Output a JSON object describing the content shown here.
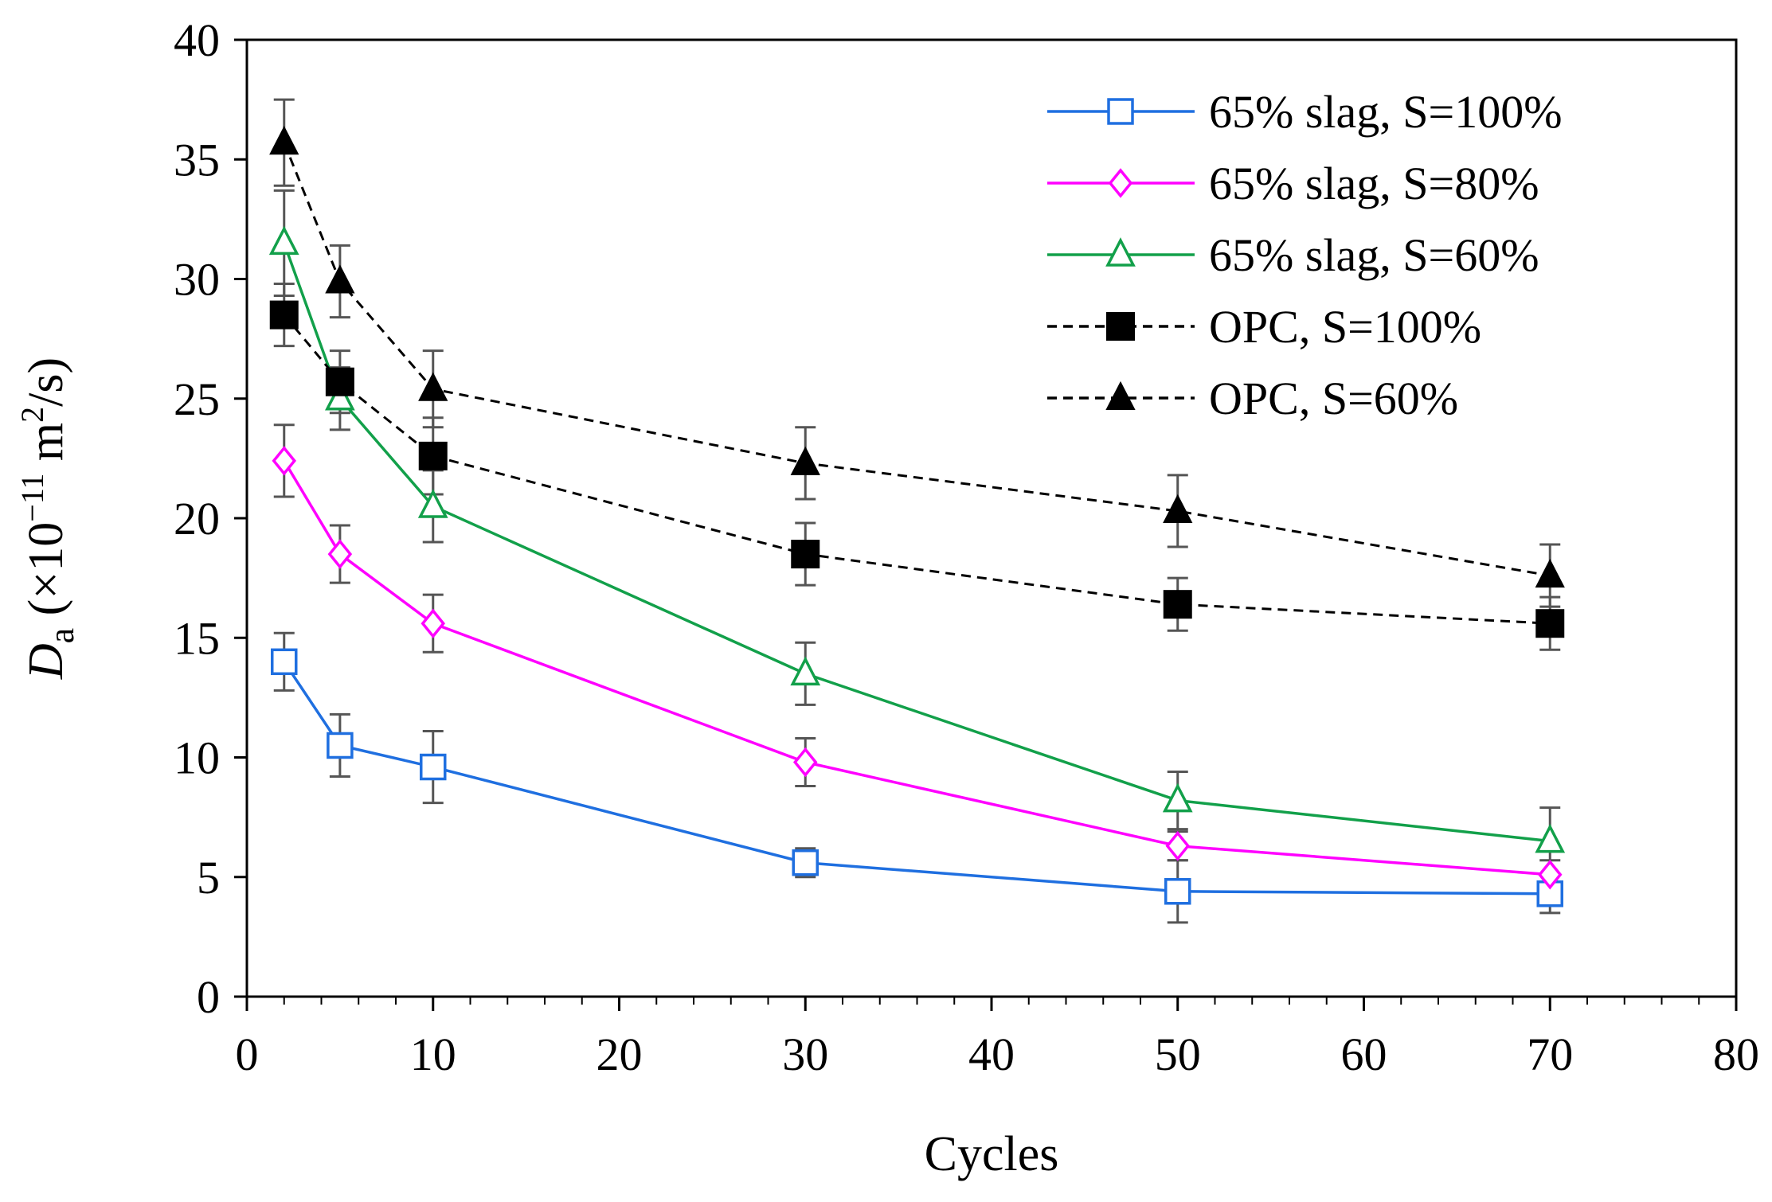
{
  "chart_data": {
    "type": "line",
    "title": "",
    "xlabel": "Cycles",
    "ylabel": {
      "symbol": "D",
      "subscript": "a",
      "open": " (×10",
      "exponent": "−11",
      "unit_base": " m",
      "unit_exponent": "2",
      "unit_rest": "/s)"
    },
    "xlim": [
      0,
      80
    ],
    "ylim": [
      0,
      40
    ],
    "xticks": [
      0,
      10,
      20,
      30,
      40,
      50,
      60,
      70,
      80
    ],
    "yticks": [
      0,
      5,
      10,
      15,
      20,
      25,
      30,
      35,
      40
    ],
    "x_minor_step": 2,
    "grid": false,
    "legend_position": "top-right",
    "x": [
      2,
      5,
      10,
      30,
      50,
      70
    ],
    "series": [
      {
        "name": "65% slag, S=100%",
        "color": "#1f6fe0",
        "dashed": false,
        "marker": "square-open",
        "values": [
          14.0,
          10.5,
          9.6,
          5.6,
          4.4,
          4.3
        ],
        "errors": [
          1.2,
          1.3,
          1.5,
          0.6,
          1.3,
          0.8
        ]
      },
      {
        "name": "65% slag, S=80%",
        "color": "#ff00ff",
        "dashed": false,
        "marker": "diamond-open",
        "values": [
          22.4,
          18.5,
          15.6,
          9.8,
          6.3,
          5.1
        ],
        "errors": [
          1.5,
          1.2,
          1.2,
          1.0,
          0.6,
          0.6
        ]
      },
      {
        "name": "65% slag, S=60%",
        "color": "#12a04a",
        "dashed": false,
        "marker": "triangle-open",
        "values": [
          31.5,
          25.0,
          20.5,
          13.5,
          8.2,
          6.5
        ],
        "errors": [
          2.2,
          1.3,
          1.5,
          1.3,
          1.2,
          1.4
        ]
      },
      {
        "name": "OPC, S=100%",
        "color": "#000000",
        "dashed": true,
        "marker": "square-filled",
        "values": [
          28.5,
          25.7,
          22.6,
          18.5,
          16.4,
          15.6
        ],
        "errors": [
          1.3,
          1.3,
          1.6,
          1.3,
          1.1,
          1.1
        ]
      },
      {
        "name": "OPC, S=60%",
        "color": "#000000",
        "dashed": true,
        "marker": "triangle-filled",
        "values": [
          35.7,
          29.9,
          25.4,
          22.3,
          20.3,
          17.6
        ],
        "errors": [
          1.8,
          1.5,
          1.6,
          1.5,
          1.5,
          1.3
        ]
      }
    ],
    "error_bar_color": "#555555"
  }
}
